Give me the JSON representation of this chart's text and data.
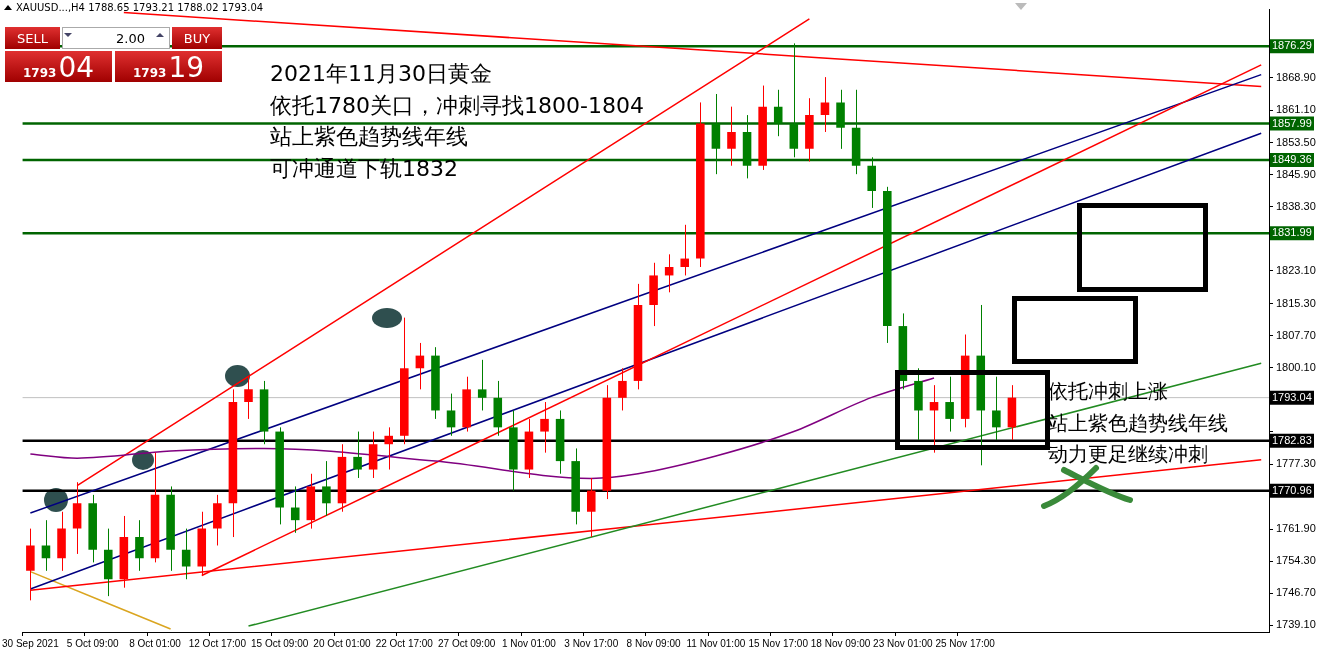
{
  "chart_data": {
    "type": "candlestick",
    "title": "XAUUSD...,H4  1788.65 1793.21 1788.02 1793.04",
    "annotations": [
      "2021年11月30日黄金",
      "依托1780关口，冲刺寻找1800-1804",
      "站上紫色趋势线年线",
      "可冲通道下轨1832",
      "依托冲刺上涨",
      "站上紫色趋势线年线",
      "动力更足继续冲刺",
      "SELL",
      "2.00",
      "BUY",
      "1793",
      "04",
      "1793",
      "19"
    ],
    "categories": [
      "30 Sep 2021",
      null,
      null,
      null,
      "5 Oct 09:00",
      null,
      null,
      null,
      "8 Oct 01:00",
      null,
      null,
      null,
      "12 Oct 17:00",
      null,
      null,
      null,
      "15 Oct 09:00",
      null,
      null,
      null,
      "20 Oct 01:00",
      null,
      null,
      null,
      "22 Oct 17:00",
      null,
      null,
      null,
      "27 Oct 09:00",
      null,
      null,
      null,
      "1 Nov 01:00",
      null,
      null,
      null,
      "3 Nov 17:00",
      null,
      null,
      null,
      "8 Nov 09:00",
      null,
      null,
      null,
      "11 Nov 01:00",
      null,
      null,
      null,
      "15 Nov 17:00",
      null,
      null,
      null,
      "18 Nov 09:00",
      null,
      null,
      null,
      "23 Nov 01:00",
      null,
      null,
      null,
      "25 Nov 17:00",
      null,
      null,
      null,
      null,
      null,
      null,
      null,
      null,
      null,
      null,
      null,
      null,
      null,
      null,
      null,
      null,
      null,
      null,
      null
    ],
    "ohlc": [
      [
        1752,
        1762,
        1745,
        1758
      ],
      [
        1758,
        1764,
        1752,
        1755
      ],
      [
        1755,
        1766,
        1752,
        1762
      ],
      [
        1762,
        1773,
        1756,
        1768
      ],
      [
        1768,
        1770,
        1754,
        1757
      ],
      [
        1757,
        1762,
        1746,
        1750
      ],
      [
        1750,
        1765,
        1748,
        1760
      ],
      [
        1760,
        1764,
        1752,
        1755
      ],
      [
        1755,
        1780,
        1754,
        1770
      ],
      [
        1770,
        1772,
        1752,
        1757
      ],
      [
        1757,
        1762,
        1750,
        1753
      ],
      [
        1753,
        1766,
        1751,
        1762
      ],
      [
        1762,
        1770,
        1758,
        1768
      ],
      [
        1768,
        1795,
        1760,
        1792
      ],
      [
        1792,
        1798,
        1788,
        1795
      ],
      [
        1795,
        1797,
        1782,
        1785
      ],
      [
        1785,
        1786,
        1763,
        1767
      ],
      [
        1767,
        1772,
        1761,
        1764
      ],
      [
        1764,
        1775,
        1762,
        1772
      ],
      [
        1772,
        1778,
        1765,
        1768
      ],
      [
        1768,
        1782,
        1766,
        1779
      ],
      [
        1779,
        1785,
        1774,
        1776
      ],
      [
        1776,
        1785,
        1774,
        1782
      ],
      [
        1782,
        1786,
        1776,
        1784
      ],
      [
        1784,
        1812,
        1782,
        1800
      ],
      [
        1800,
        1806,
        1795,
        1803
      ],
      [
        1803,
        1805,
        1788,
        1790
      ],
      [
        1790,
        1794,
        1784,
        1786
      ],
      [
        1786,
        1798,
        1785,
        1795
      ],
      [
        1795,
        1802,
        1790,
        1793
      ],
      [
        1793,
        1797,
        1784,
        1786
      ],
      [
        1786,
        1790,
        1771,
        1776
      ],
      [
        1776,
        1788,
        1774,
        1785
      ],
      [
        1785,
        1792,
        1780,
        1788
      ],
      [
        1788,
        1790,
        1775,
        1778
      ],
      [
        1778,
        1781,
        1763,
        1766
      ],
      [
        1766,
        1774,
        1760,
        1771
      ],
      [
        1771,
        1796,
        1769,
        1793
      ],
      [
        1793,
        1800,
        1790,
        1797
      ],
      [
        1797,
        1820,
        1795,
        1815
      ],
      [
        1815,
        1825,
        1810,
        1822
      ],
      [
        1822,
        1827,
        1818,
        1824
      ],
      [
        1824,
        1834,
        1822,
        1826
      ],
      [
        1826,
        1863,
        1824,
        1858
      ],
      [
        1858,
        1865,
        1846,
        1852
      ],
      [
        1852,
        1862,
        1848,
        1856
      ],
      [
        1856,
        1860,
        1845,
        1848
      ],
      [
        1848,
        1867,
        1847,
        1862
      ],
      [
        1862,
        1866,
        1855,
        1858
      ],
      [
        1858,
        1877,
        1850,
        1852
      ],
      [
        1852,
        1864,
        1849,
        1860
      ],
      [
        1860,
        1869,
        1856,
        1863
      ],
      [
        1863,
        1866,
        1852,
        1857
      ],
      [
        1857,
        1866,
        1846,
        1848
      ],
      [
        1848,
        1850,
        1838,
        1842
      ],
      [
        1842,
        1843,
        1806,
        1810
      ],
      [
        1810,
        1813,
        1795,
        1797
      ],
      [
        1797,
        1800,
        1783,
        1790
      ],
      [
        1790,
        1796,
        1780,
        1792
      ],
      [
        1792,
        1798,
        1785,
        1788
      ],
      [
        1788,
        1808,
        1786,
        1803
      ],
      [
        1803,
        1815,
        1777,
        1790
      ],
      [
        1790,
        1798,
        1783,
        1786
      ],
      [
        1786,
        1796,
        1783,
        1793.04
      ],
      null,
      null,
      null,
      null,
      null,
      null,
      null,
      null,
      null,
      null,
      null,
      null,
      null,
      null,
      null,
      null
    ],
    "colors": [
      "#ff0000",
      "#008000",
      "#ff0000",
      "#ff0000",
      "#008000",
      "#008000",
      "#ff0000",
      "#008000",
      "#ff0000",
      "#008000",
      "#008000",
      "#ff0000",
      "#ff0000",
      "#ff0000",
      "#ff0000",
      "#008000",
      "#008000",
      "#008000",
      "#ff0000",
      "#008000",
      "#ff0000",
      "#008000",
      "#ff0000",
      "#ff0000",
      "#ff0000",
      "#ff0000",
      "#008000",
      "#008000",
      "#ff0000",
      "#008000",
      "#008000",
      "#008000",
      "#ff0000",
      "#ff0000",
      "#008000",
      "#008000",
      "#ff0000",
      "#ff0000",
      "#ff0000",
      "#ff0000",
      "#ff0000",
      "#ff0000",
      "#ff0000",
      "#ff0000",
      "#008000",
      "#ff0000",
      "#008000",
      "#ff0000",
      "#008000",
      "#008000",
      "#ff0000",
      "#ff0000",
      "#008000",
      "#008000",
      "#008000",
      "#008000",
      "#008000",
      "#008000",
      "#ff0000",
      "#008000",
      "#ff0000",
      "#008000",
      "#008000",
      "#ff0000",
      null,
      null,
      null,
      null,
      null,
      null,
      null,
      null,
      null,
      null,
      null,
      null,
      null,
      null,
      null,
      null
    ],
    "series": [
      {
        "type": "line",
        "color": "#800080",
        "values": [
          1779.7,
          null,
          null,
          1778.7,
          null,
          null,
          null,
          null,
          null,
          1780.4,
          null,
          null,
          null,
          null,
          null,
          1781.0,
          null,
          null,
          null,
          null,
          null,
          null,
          null,
          null,
          null,
          null,
          1778.0,
          null,
          null,
          null,
          null,
          null,
          null,
          null,
          null,
          null,
          1773.9,
          null,
          null,
          1775.0,
          null,
          null,
          null,
          null,
          1779.2,
          null,
          null,
          null,
          null,
          1785.0,
          null,
          null,
          null,
          null,
          1793.1,
          null,
          null,
          null,
          1797.7,
          null,
          null,
          null,
          null,
          null,
          null,
          null,
          null,
          null,
          null,
          null,
          null,
          null,
          null,
          null,
          null,
          null,
          null,
          null,
          null,
          null
        ]
      },
      {
        "type": "line",
        "color": "#ff0000",
        "values": [
          null,
          null,
          null,
          1772.2,
          null,
          null,
          null,
          null,
          null,
          null,
          null,
          null,
          null,
          null,
          null,
          null,
          null,
          null,
          null,
          null,
          null,
          null,
          null,
          null,
          null,
          null,
          null,
          null,
          null,
          null,
          null,
          null,
          null,
          null,
          null,
          null,
          null,
          null,
          null,
          null,
          null,
          null,
          null,
          null,
          null,
          null,
          null,
          null,
          null,
          null,
          1882.8,
          null,
          null,
          null,
          null,
          null,
          null,
          null,
          null,
          null,
          null,
          null,
          null,
          null,
          null,
          null,
          null,
          null,
          null,
          null,
          null,
          null,
          null,
          null,
          null,
          null,
          null,
          null,
          null,
          null
        ]
      },
      {
        "type": "line",
        "color": "#ff0000",
        "values": [
          null,
          null,
          null,
          null,
          null,
          null,
          null,
          null,
          null,
          null,
          null,
          1750.9,
          null,
          null,
          null,
          null,
          null,
          null,
          null,
          null,
          null,
          null,
          null,
          null,
          null,
          null,
          null,
          null,
          null,
          null,
          null,
          null,
          null,
          null,
          null,
          null,
          null,
          null,
          null,
          null,
          null,
          null,
          null,
          null,
          null,
          null,
          null,
          null,
          null,
          null,
          null,
          null,
          null,
          null,
          null,
          null,
          null,
          null,
          null,
          null,
          null,
          null,
          null,
          null,
          null,
          null,
          null,
          null,
          null,
          null,
          null,
          null,
          null,
          null,
          null,
          null,
          null,
          null,
          null,
          1871.9
        ]
      },
      {
        "type": "line",
        "color": "#000080",
        "values": [
          1765.7,
          null,
          null,
          null,
          null,
          null,
          null,
          null,
          null,
          null,
          null,
          null,
          null,
          null,
          null,
          null,
          null,
          null,
          null,
          null,
          null,
          null,
          null,
          null,
          null,
          null,
          null,
          null,
          null,
          null,
          null,
          null,
          null,
          null,
          null,
          null,
          null,
          null,
          null,
          null,
          null,
          null,
          null,
          null,
          null,
          null,
          null,
          null,
          null,
          null,
          null,
          null,
          null,
          null,
          null,
          null,
          null,
          null,
          null,
          null,
          null,
          null,
          null,
          null,
          null,
          null,
          null,
          null,
          null,
          null,
          null,
          null,
          null,
          null,
          null,
          null,
          null,
          null,
          null,
          1869.6
        ]
      },
      {
        "type": "line",
        "color": "#000080",
        "values": [
          1747.7,
          null,
          null,
          null,
          null,
          null,
          null,
          null,
          null,
          null,
          null,
          null,
          null,
          null,
          null,
          null,
          null,
          null,
          null,
          null,
          null,
          null,
          null,
          null,
          null,
          null,
          null,
          null,
          null,
          null,
          null,
          null,
          null,
          null,
          null,
          null,
          null,
          null,
          null,
          null,
          null,
          null,
          null,
          null,
          null,
          null,
          null,
          null,
          null,
          null,
          null,
          null,
          null,
          null,
          null,
          null,
          null,
          null,
          null,
          null,
          null,
          null,
          null,
          null,
          null,
          null,
          null,
          null,
          null,
          null,
          null,
          null,
          null,
          null,
          null,
          null,
          null,
          null,
          null,
          1855.7
        ]
      },
      {
        "type": "line",
        "color": "#ff0000",
        "values": [
          null,
          null,
          null,
          null,
          null,
          null,
          1884.3,
          null,
          null,
          null,
          null,
          null,
          null,
          null,
          null,
          null,
          null,
          null,
          null,
          null,
          null,
          null,
          null,
          null,
          null,
          null,
          null,
          null,
          null,
          null,
          null,
          null,
          null,
          null,
          null,
          null,
          null,
          null,
          null,
          null,
          null,
          null,
          null,
          null,
          null,
          null,
          null,
          null,
          null,
          null,
          null,
          null,
          null,
          null,
          null,
          null,
          null,
          null,
          null,
          null,
          null,
          null,
          null,
          null,
          null,
          null,
          null,
          null,
          null,
          null,
          null,
          null,
          null,
          null,
          null,
          null,
          null,
          null,
          null,
          1866.8
        ]
      },
      {
        "type": "line",
        "color": "#228b22",
        "values": [
          null,
          null,
          null,
          null,
          null,
          null,
          null,
          null,
          null,
          null,
          null,
          null,
          null,
          null,
          1738.9,
          null,
          null,
          null,
          null,
          null,
          null,
          null,
          null,
          null,
          null,
          null,
          null,
          null,
          null,
          null,
          null,
          null,
          null,
          null,
          null,
          null,
          null,
          null,
          null,
          null,
          null,
          null,
          null,
          null,
          null,
          null,
          null,
          null,
          null,
          null,
          null,
          null,
          null,
          null,
          null,
          null,
          null,
          null,
          null,
          null,
          null,
          null,
          null,
          null,
          null,
          null,
          null,
          null,
          null,
          null,
          null,
          null,
          null,
          null,
          null,
          null,
          null,
          null,
          null,
          1801.2
        ]
      },
      {
        "type": "line",
        "color": "#ff0000",
        "values": [
          1747.4,
          null,
          null,
          null,
          null,
          null,
          null,
          null,
          null,
          null,
          null,
          null,
          null,
          null,
          null,
          null,
          null,
          null,
          null,
          null,
          null,
          null,
          null,
          null,
          null,
          null,
          null,
          null,
          null,
          null,
          null,
          null,
          null,
          null,
          null,
          null,
          null,
          null,
          null,
          null,
          null,
          null,
          null,
          null,
          null,
          null,
          null,
          null,
          null,
          null,
          null,
          null,
          null,
          null,
          null,
          null,
          null,
          null,
          null,
          null,
          null,
          null,
          null,
          null,
          null,
          null,
          null,
          null,
          null,
          null,
          null,
          null,
          null,
          null,
          null,
          null,
          null,
          null,
          null,
          1778.3
        ]
      },
      {
        "type": "line",
        "color": "#daa520",
        "values": [
          1751.8,
          null,
          null,
          null,
          null,
          null,
          null,
          null,
          null,
          1738.2,
          null,
          null,
          null,
          null,
          null,
          null,
          null,
          null,
          null,
          null,
          null,
          null,
          null,
          null,
          null,
          null,
          null,
          null,
          null,
          null,
          null,
          null,
          null,
          null,
          null,
          null,
          null,
          null,
          null,
          null,
          null,
          null,
          null,
          null,
          null,
          null,
          null,
          null,
          null,
          null,
          null,
          null,
          null,
          null,
          null,
          null,
          null,
          null,
          null,
          null,
          null,
          null,
          null,
          null,
          null,
          null,
          null,
          null,
          null,
          null,
          null,
          null,
          null,
          null,
          null,
          null,
          null,
          null,
          null,
          null
        ]
      }
    ],
    "ylim": [
      1737.5,
      1885
    ],
    "yticks": [
      {
        "value": 1739.1,
        "label": "1739.10"
      },
      {
        "value": 1746.7,
        "label": "1746.70"
      },
      {
        "value": 1754.3,
        "label": "1754.30"
      },
      {
        "value": 1761.9,
        "label": "1761.90"
      },
      {
        "value": 1769.5,
        "label": null
      },
      {
        "value": 1777.3,
        "label": "1777.30"
      },
      {
        "value": 1784.9,
        "label": null
      },
      {
        "value": 1800.1,
        "label": "1800.10"
      },
      {
        "value": 1807.7,
        "label": "1807.70"
      },
      {
        "value": 1815.3,
        "label": "1815.30"
      },
      {
        "value": 1823.1,
        "label": "1823.10"
      },
      {
        "value": 1830.7,
        "label": null
      },
      {
        "value": 1838.3,
        "label": "1838.30"
      },
      {
        "value": 1845.9,
        "label": "1845.90"
      },
      {
        "value": 1853.5,
        "label": "1853.50"
      },
      {
        "value": 1861.1,
        "label": "1861.10"
      },
      {
        "value": 1868.9,
        "label": "1868.90"
      }
    ],
    "ref_lines": [
      {
        "axis": "y",
        "value": 1876.29,
        "label": "1876.29",
        "color": "#006400"
      },
      {
        "axis": "y",
        "value": 1857.99,
        "label": "1857.99",
        "color": "#006400"
      },
      {
        "axis": "y",
        "value": 1849.36,
        "label": "1849.36",
        "color": "#006400"
      },
      {
        "axis": "y",
        "value": 1831.99,
        "label": "1831.99",
        "color": "#006400"
      },
      {
        "axis": "y",
        "value": 1793.04,
        "label": "1793.04",
        "color": "#c0c0c0"
      },
      {
        "axis": "y",
        "value": 1782.83,
        "label": "1782.83",
        "color": "#000000"
      },
      {
        "axis": "y",
        "value": 1770.96,
        "label": "1770.96",
        "color": "#000000"
      }
    ],
    "grid": false,
    "legend": false
  }
}
